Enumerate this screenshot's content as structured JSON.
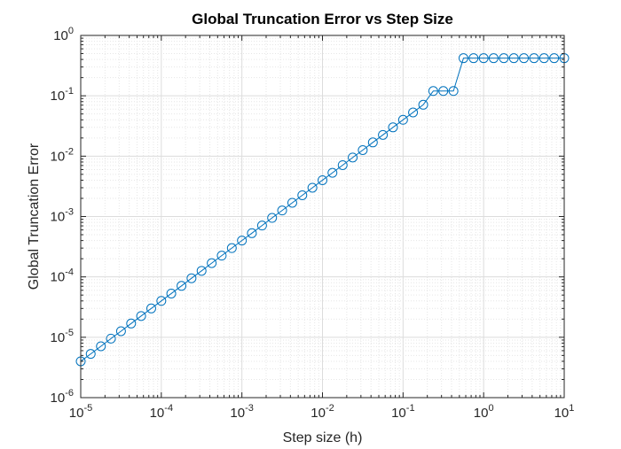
{
  "chart_data": {
    "type": "line",
    "title": "Global Truncation Error vs Step Size",
    "xlabel": "Step size (h)",
    "ylabel": "Global Truncation Error",
    "x_scale": "log",
    "y_scale": "log",
    "xlim": [
      1e-05,
      10
    ],
    "ylim": [
      1e-06,
      1
    ],
    "grid": true,
    "minor_grid": true,
    "legend": "none",
    "marker": "circle",
    "colors": {
      "series": "#0072bd",
      "grid": "#e6e6e6",
      "axis": "#262626"
    },
    "x_ticks": [
      {
        "base": "10",
        "exp": "-5"
      },
      {
        "base": "10",
        "exp": "-4"
      },
      {
        "base": "10",
        "exp": "-3"
      },
      {
        "base": "10",
        "exp": "-2"
      },
      {
        "base": "10",
        "exp": "-1"
      },
      {
        "base": "10",
        "exp": "0"
      },
      {
        "base": "10",
        "exp": "1"
      }
    ],
    "y_ticks": [
      {
        "base": "10",
        "exp": "-6"
      },
      {
        "base": "10",
        "exp": "-5"
      },
      {
        "base": "10",
        "exp": "-4"
      },
      {
        "base": "10",
        "exp": "-3"
      },
      {
        "base": "10",
        "exp": "-2"
      },
      {
        "base": "10",
        "exp": "-1"
      },
      {
        "base": "10",
        "exp": "0"
      }
    ],
    "series": [
      {
        "x": [
          1e-05,
          1.33e-05,
          1.78e-05,
          2.37e-05,
          3.16e-05,
          4.22e-05,
          5.62e-05,
          7.5e-05,
          0.0001,
          0.000133,
          0.000178,
          0.000237,
          0.000316,
          0.000422,
          0.000562,
          0.00075,
          0.001,
          0.00133,
          0.00178,
          0.00237,
          0.00316,
          0.00422,
          0.00562,
          0.0075,
          0.01,
          0.0133,
          0.0178,
          0.0237,
          0.0316,
          0.0422,
          0.0562,
          0.075,
          0.1,
          0.133,
          0.178,
          0.237,
          0.316,
          0.422,
          0.562,
          0.75,
          1,
          1.33,
          1.78,
          2.37,
          3.16,
          4.22,
          5.62,
          7.5,
          10
        ],
        "y": [
          4e-06,
          5.3e-06,
          7.1e-06,
          9.5e-06,
          1.26e-05,
          1.69e-05,
          2.25e-05,
          3e-05,
          4e-05,
          5.3e-05,
          7.1e-05,
          9.5e-05,
          0.000126,
          0.000169,
          0.000225,
          0.0003,
          0.0004,
          0.00053,
          0.00071,
          0.00095,
          0.00126,
          0.00169,
          0.00225,
          0.003,
          0.004,
          0.0053,
          0.0071,
          0.0095,
          0.0126,
          0.0169,
          0.0225,
          0.03,
          0.04,
          0.053,
          0.071,
          0.12,
          0.12,
          0.12,
          0.42,
          0.42,
          0.42,
          0.42,
          0.42,
          0.42,
          0.42,
          0.42,
          0.42,
          0.42,
          0.42
        ]
      }
    ]
  }
}
